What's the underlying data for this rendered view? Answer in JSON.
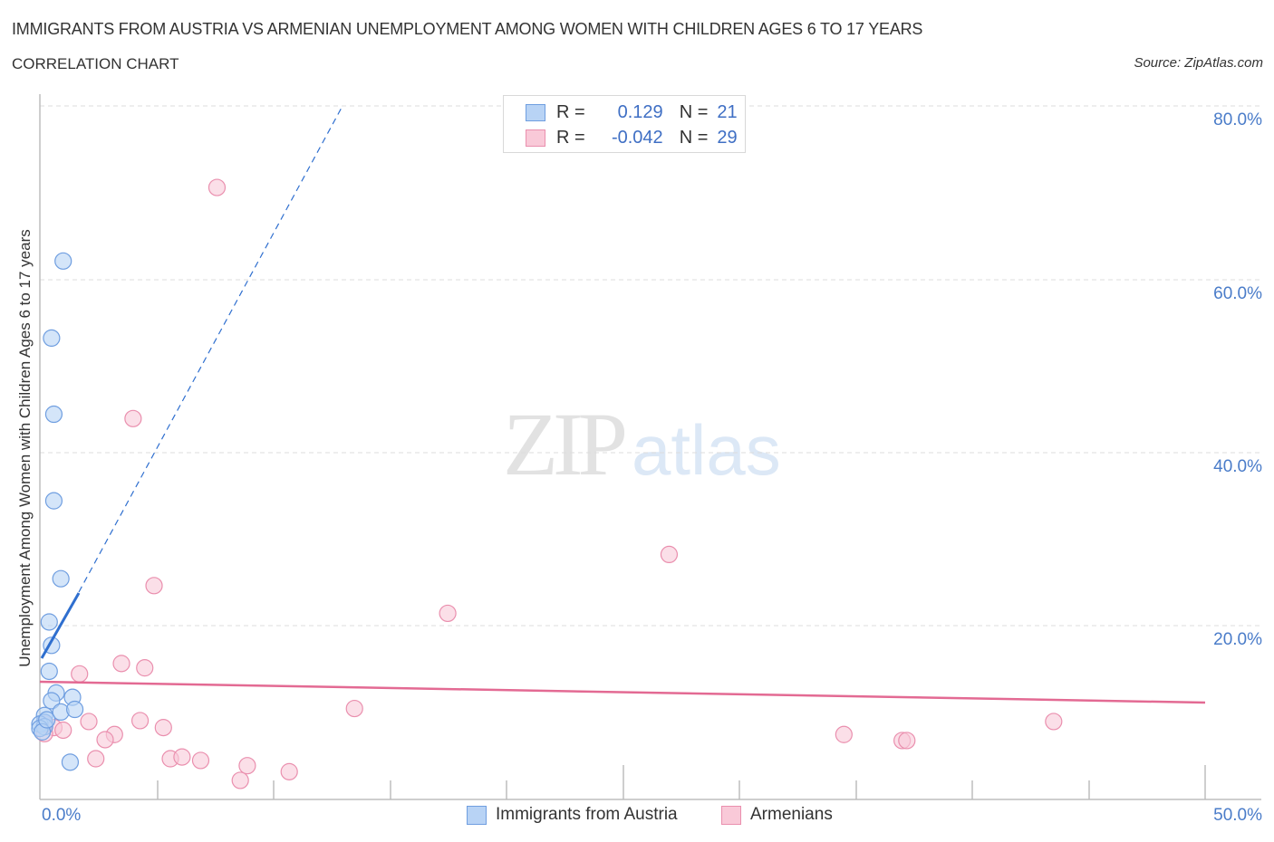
{
  "header": {
    "title": "IMMIGRANTS FROM AUSTRIA VS ARMENIAN UNEMPLOYMENT AMONG WOMEN WITH CHILDREN AGES 6 TO 17 YEARS",
    "subtitle": "CORRELATION CHART",
    "source": "Source: ZipAtlas.com"
  },
  "watermark": {
    "zip": "ZIP",
    "atlas": "atlas"
  },
  "stats_legend": {
    "rows": [
      {
        "swatch": "blue",
        "r_label": "R =",
        "r_value": "0.129",
        "n_label": "N =",
        "n_value": "21"
      },
      {
        "swatch": "pink",
        "r_label": "R =",
        "r_value": "-0.042",
        "n_label": "N =",
        "n_value": "29"
      }
    ]
  },
  "colors": {
    "blue_fill": "#b8d3f5",
    "blue_stroke": "#6f9ee0",
    "blue_line": "#2f6fcf",
    "pink_fill": "#f9c9d8",
    "pink_stroke": "#ea8fae",
    "pink_line": "#e36a93",
    "tick_text": "#4a7cc9"
  },
  "axes": {
    "y_ticks": [
      "80.0%",
      "60.0%",
      "40.0%",
      "20.0%"
    ],
    "x_min_label": "0.0%",
    "x_max_label": "50.0%",
    "y_label": "Unemployment Among Women with Children Ages 6 to 17 years"
  },
  "bottom_legend": {
    "items": [
      {
        "label": "Immigrants from Austria",
        "swatch": "blue"
      },
      {
        "label": "Armenians",
        "swatch": "pink"
      }
    ]
  },
  "chart_data": {
    "type": "scatter",
    "title": "IMMIGRANTS FROM AUSTRIA VS ARMENIAN UNEMPLOYMENT AMONG WOMEN WITH CHILDREN AGES 6 TO 17 YEARS",
    "subtitle": "CORRELATION CHART",
    "xlabel": "",
    "ylabel": "Unemployment Among Women with Children Ages 6 to 17 years",
    "xlim": [
      0,
      50
    ],
    "ylim": [
      0,
      80
    ],
    "x_tick_labels": [
      "0.0%",
      "50.0%"
    ],
    "y_tick_labels": [
      "20.0%",
      "40.0%",
      "60.0%",
      "80.0%"
    ],
    "grid": true,
    "legend_position": "bottom",
    "series": [
      {
        "name": "Immigrants from Austria",
        "color": "#6f9ee0",
        "R": 0.129,
        "N": 21,
        "points": [
          [
            1.0,
            62.1
          ],
          [
            0.5,
            53.2
          ],
          [
            0.6,
            44.4
          ],
          [
            0.6,
            34.4
          ],
          [
            0.9,
            25.4
          ],
          [
            0.4,
            20.4
          ],
          [
            0.5,
            17.7
          ],
          [
            0.4,
            14.7
          ],
          [
            0.7,
            12.2
          ],
          [
            0.5,
            11.3
          ],
          [
            1.4,
            11.7
          ],
          [
            0.9,
            10.0
          ],
          [
            1.5,
            10.3
          ],
          [
            0.2,
            9.6
          ],
          [
            0.2,
            8.8
          ],
          [
            0.0,
            8.6
          ],
          [
            0.2,
            8.3
          ],
          [
            0.0,
            8.1
          ],
          [
            0.1,
            7.7
          ],
          [
            1.3,
            4.2
          ],
          [
            0.3,
            9.1
          ]
        ],
        "trend": {
          "solid": [
            [
              0.0,
              16.0
            ],
            [
              1.7,
              23.8
            ]
          ],
          "dashed_to": [
            13.0,
            80.0
          ]
        }
      },
      {
        "name": "Armenians",
        "color": "#ea8fae",
        "R": -0.042,
        "N": 29,
        "points": [
          [
            7.6,
            70.6
          ],
          [
            4.0,
            43.9
          ],
          [
            4.9,
            24.6
          ],
          [
            27.0,
            28.2
          ],
          [
            17.5,
            21.4
          ],
          [
            3.5,
            15.6
          ],
          [
            4.5,
            15.1
          ],
          [
            1.7,
            14.4
          ],
          [
            13.5,
            10.4
          ],
          [
            2.1,
            8.9
          ],
          [
            4.3,
            9.0
          ],
          [
            3.2,
            7.4
          ],
          [
            5.3,
            8.2
          ],
          [
            2.8,
            6.8
          ],
          [
            2.4,
            4.6
          ],
          [
            5.6,
            4.6
          ],
          [
            6.1,
            4.8
          ],
          [
            6.9,
            4.4
          ],
          [
            8.9,
            3.8
          ],
          [
            8.6,
            2.1
          ],
          [
            10.7,
            3.1
          ],
          [
            34.5,
            7.4
          ],
          [
            37.0,
            6.7
          ],
          [
            37.2,
            6.7
          ],
          [
            43.5,
            8.9
          ],
          [
            0.6,
            8.2
          ],
          [
            1.0,
            7.9
          ],
          [
            0.2,
            7.5
          ],
          [
            0.2,
            8.6
          ]
        ],
        "trend": {
          "solid": [
            [
              0.0,
              13.4
            ],
            [
              50.0,
              11.0
            ]
          ]
        }
      }
    ]
  }
}
